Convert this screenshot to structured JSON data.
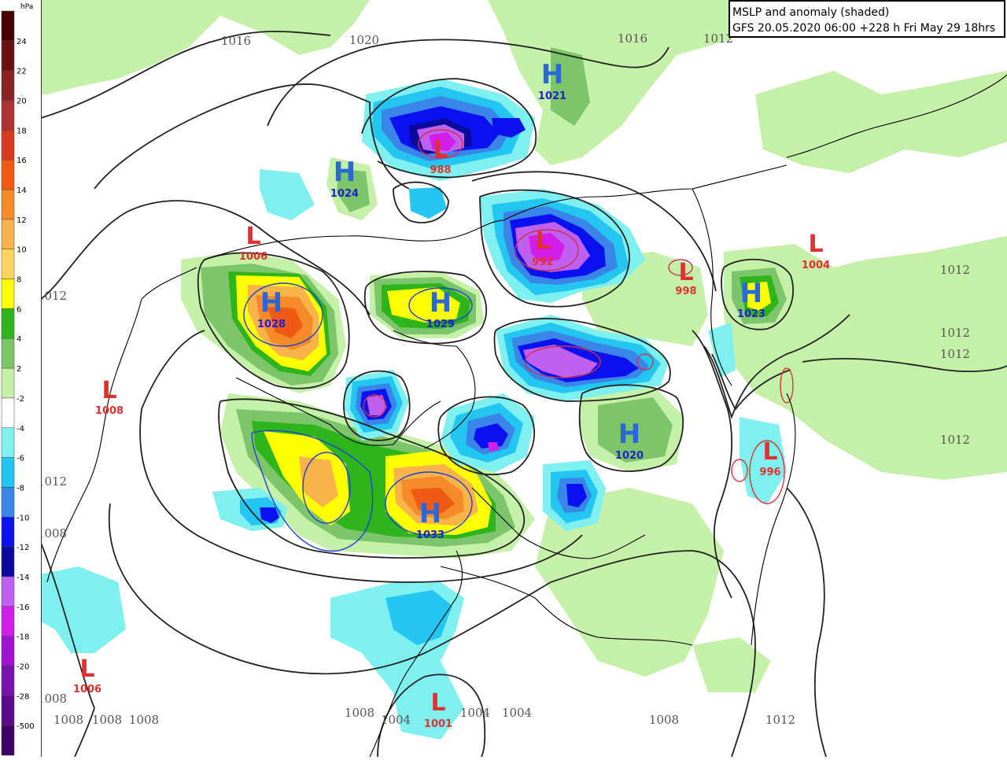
{
  "title": {
    "line1": "MSLP and anomaly (shaded)",
    "line2": "GFS 20.05.2020 06:00 +228 h Fri May 29 18hrs"
  },
  "legend": {
    "unit": "hPa",
    "bins": [
      {
        "label": "24",
        "color": "#4a0000"
      },
      {
        "label": "22",
        "color": "#6a1010"
      },
      {
        "label": "20",
        "color": "#8a2222"
      },
      {
        "label": "18",
        "color": "#b03333"
      },
      {
        "label": "16",
        "color": "#d63a1e"
      },
      {
        "label": "14",
        "color": "#f05a14"
      },
      {
        "label": "12",
        "color": "#f58a2a"
      },
      {
        "label": "10",
        "color": "#f9b34a"
      },
      {
        "label": "8",
        "color": "#fbd560"
      },
      {
        "label": "6",
        "color": "#ffff00"
      },
      {
        "label": "4",
        "color": "#2fb51c"
      },
      {
        "label": "2",
        "color": "#7cc56a"
      },
      {
        "label": "-2",
        "color": "#c4f0a8"
      },
      {
        "label": "-4",
        "color": "#ffffff"
      },
      {
        "label": "-6",
        "color": "#7ff0f0"
      },
      {
        "label": "-8",
        "color": "#23c6f0"
      },
      {
        "label": "-10",
        "color": "#3a86e8"
      },
      {
        "label": "-12",
        "color": "#0a10f0"
      },
      {
        "label": "-14",
        "color": "#0a0a9c"
      },
      {
        "label": "-16",
        "color": "#c060f0"
      },
      {
        "label": "-18",
        "color": "#d21ee8"
      },
      {
        "label": "-20",
        "color": "#a012d0"
      },
      {
        "label": "-28",
        "color": "#7a10b0"
      },
      {
        "label": "-500",
        "color": "#5a0a8a"
      },
      {
        "label": "",
        "color": "#3c0066"
      }
    ]
  },
  "colors": {
    "low_marker": "#e03030",
    "high_marker": "#2a68d8",
    "low_value": "#e03030",
    "high_value": "#2020c8",
    "isobar_label": "#555555",
    "isobar": "#222222",
    "coast": "#000000"
  },
  "pressure_centers": [
    {
      "type": "H",
      "value": "1021",
      "name": "high-center-1021"
    },
    {
      "type": "H",
      "value": "1024",
      "name": "high-center-1024"
    },
    {
      "type": "H",
      "value": "1028",
      "name": "high-center-1028"
    },
    {
      "type": "H",
      "value": "1029",
      "name": "high-center-1029"
    },
    {
      "type": "H",
      "value": "1023",
      "name": "high-center-1023"
    },
    {
      "type": "H",
      "value": "1020",
      "name": "high-center-1020"
    },
    {
      "type": "H",
      "value": "1033",
      "name": "high-center-1033"
    },
    {
      "type": "L",
      "value": "988",
      "name": "low-center-988"
    },
    {
      "type": "L",
      "value": "1006",
      "name": "low-center-1006-north"
    },
    {
      "type": "L",
      "value": "992",
      "name": "low-center-992"
    },
    {
      "type": "L",
      "value": "998",
      "name": "low-center-998"
    },
    {
      "type": "L",
      "value": "1004",
      "name": "low-center-1004"
    },
    {
      "type": "L",
      "value": "1008",
      "name": "low-center-1008"
    },
    {
      "type": "L",
      "value": "996",
      "name": "low-center-996"
    },
    {
      "type": "L",
      "value": "1006",
      "name": "low-center-1006-south"
    },
    {
      "type": "L",
      "value": "1001",
      "name": "low-center-1001"
    }
  ],
  "isobar_labels": [
    "1016",
    "1020",
    "1016",
    "1012",
    "1012",
    "1012",
    "1012",
    "1012",
    "1012",
    "1008",
    "1008",
    "1008",
    "1008",
    "1008",
    "1008",
    "1004",
    "1004",
    "1004",
    "1008",
    "1012"
  ]
}
